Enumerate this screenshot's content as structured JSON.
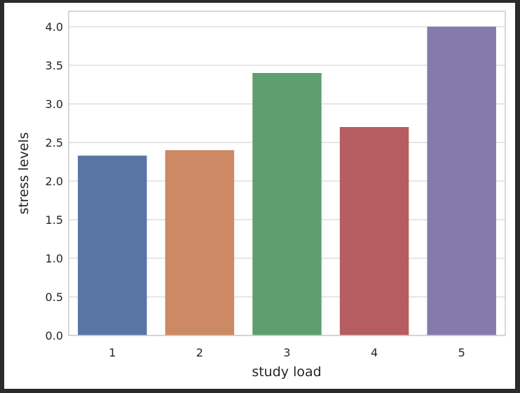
{
  "window": {
    "background": "#2b2b2b"
  },
  "chart_data": {
    "type": "bar",
    "title": "",
    "xlabel": "study load",
    "ylabel": "stress levels",
    "categories": [
      "1",
      "2",
      "3",
      "4",
      "5"
    ],
    "values": [
      2.33,
      2.4,
      3.4,
      2.7,
      4.0
    ],
    "colors": [
      "#5975a4",
      "#cc8963",
      "#5f9e6e",
      "#b55d60",
      "#857aab"
    ],
    "ylim": [
      0,
      4.2
    ],
    "yticks": [
      "0.0",
      "0.5",
      "1.0",
      "1.5",
      "2.0",
      "2.5",
      "3.0",
      "3.5",
      "4.0"
    ],
    "grid": true,
    "legend": "none"
  }
}
